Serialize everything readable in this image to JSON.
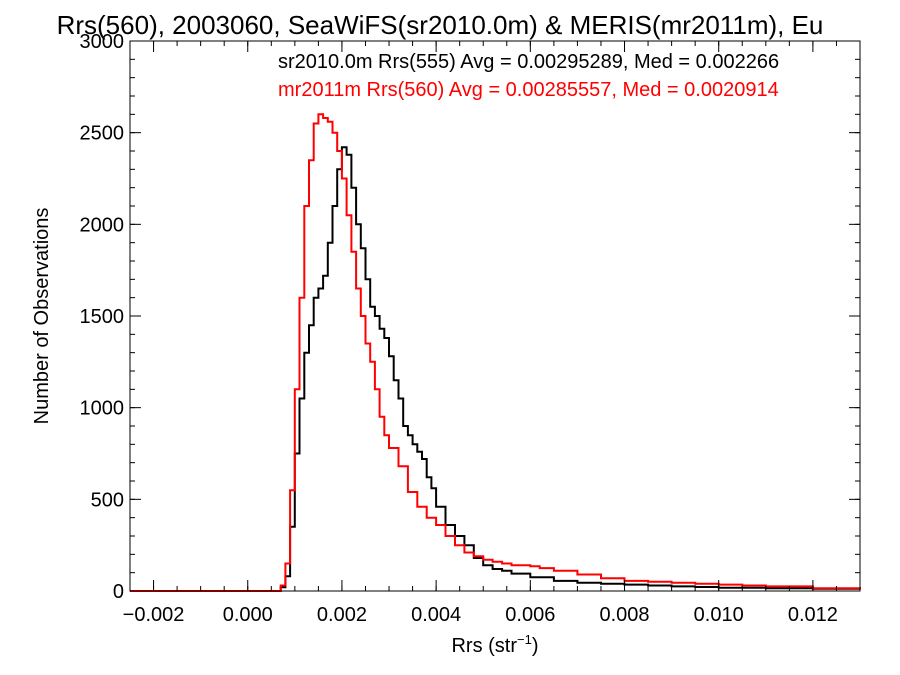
{
  "chart_data": {
    "type": "line",
    "title": "Rrs(560), 2003060, SeaWiFS(sr2010.0m) & MERIS(mr2011m), Eu",
    "xlabel_main": "Rrs (str",
    "xlabel_sup": "−1",
    "xlabel_close": ")",
    "ylabel": "Number of Observations",
    "xlim": [
      -0.0025,
      0.013
    ],
    "ylim": [
      0,
      3000
    ],
    "x_ticks": [
      -0.002,
      0.0,
      0.002,
      0.004,
      0.006,
      0.008,
      0.01,
      0.012
    ],
    "x_tick_labels": [
      "−0.002",
      "0.000",
      "0.002",
      "0.004",
      "0.006",
      "0.008",
      "0.010",
      "0.012"
    ],
    "y_ticks": [
      0,
      500,
      1000,
      1500,
      2000,
      2500,
      3000
    ],
    "y_tick_labels": [
      "0",
      "500",
      "1000",
      "1500",
      "2000",
      "2500",
      "3000"
    ],
    "annotations": [
      {
        "text": "sr2010.0m Rrs(555) Avg = 0.00295289, Med = 0.002266",
        "color": "#000000"
      },
      {
        "text": "mr2011m Rrs(560) Avg = 0.00285557, Med = 0.0020914",
        "color": "#ff0000"
      }
    ],
    "series": [
      {
        "color": "#000000",
        "x": [
          -0.0025,
          0.0007,
          0.0008,
          0.0009,
          0.001,
          0.0011,
          0.0012,
          0.0013,
          0.0014,
          0.0015,
          0.0016,
          0.0017,
          0.0018,
          0.0019,
          0.002,
          0.0021,
          0.0022,
          0.0023,
          0.0024,
          0.0025,
          0.0026,
          0.0027,
          0.0028,
          0.0029,
          0.003,
          0.0031,
          0.0032,
          0.0033,
          0.0034,
          0.0035,
          0.0036,
          0.0037,
          0.0038,
          0.0039,
          0.004,
          0.0042,
          0.0044,
          0.0046,
          0.0048,
          0.005,
          0.0052,
          0.0054,
          0.0056,
          0.006,
          0.0065,
          0.007,
          0.0075,
          0.008,
          0.0085,
          0.009,
          0.0095,
          0.01,
          0.011,
          0.012,
          0.013
        ],
        "y": [
          0,
          20,
          80,
          350,
          750,
          1050,
          1300,
          1450,
          1600,
          1650,
          1720,
          1900,
          2100,
          2300,
          2420,
          2380,
          2200,
          2000,
          1870,
          1700,
          1550,
          1500,
          1430,
          1380,
          1280,
          1150,
          1050,
          900,
          850,
          800,
          760,
          720,
          620,
          560,
          460,
          360,
          300,
          250,
          180,
          140,
          120,
          110,
          95,
          75,
          55,
          45,
          40,
          35,
          30,
          25,
          22,
          18,
          15,
          12,
          10
        ]
      },
      {
        "color": "#ff0000",
        "x": [
          -0.0025,
          0.0007,
          0.0008,
          0.0009,
          0.001,
          0.0011,
          0.0012,
          0.0013,
          0.0014,
          0.0015,
          0.0016,
          0.0017,
          0.0018,
          0.0019,
          0.002,
          0.0021,
          0.0022,
          0.0023,
          0.0024,
          0.0025,
          0.0026,
          0.0027,
          0.0028,
          0.0029,
          0.003,
          0.0032,
          0.0034,
          0.0036,
          0.0038,
          0.004,
          0.0042,
          0.0044,
          0.0046,
          0.0048,
          0.005,
          0.0052,
          0.0054,
          0.0056,
          0.0058,
          0.006,
          0.0062,
          0.0065,
          0.007,
          0.0075,
          0.008,
          0.0085,
          0.009,
          0.0095,
          0.01,
          0.0105,
          0.011,
          0.012,
          0.013
        ],
        "y": [
          0,
          30,
          150,
          550,
          1100,
          1600,
          2100,
          2350,
          2550,
          2600,
          2580,
          2560,
          2500,
          2400,
          2250,
          2050,
          1850,
          1650,
          1500,
          1350,
          1250,
          1100,
          950,
          850,
          780,
          680,
          540,
          460,
          400,
          360,
          300,
          250,
          210,
          190,
          170,
          160,
          150,
          140,
          140,
          135,
          125,
          110,
          90,
          70,
          55,
          50,
          45,
          40,
          35,
          30,
          25,
          15,
          10
        ]
      }
    ]
  }
}
